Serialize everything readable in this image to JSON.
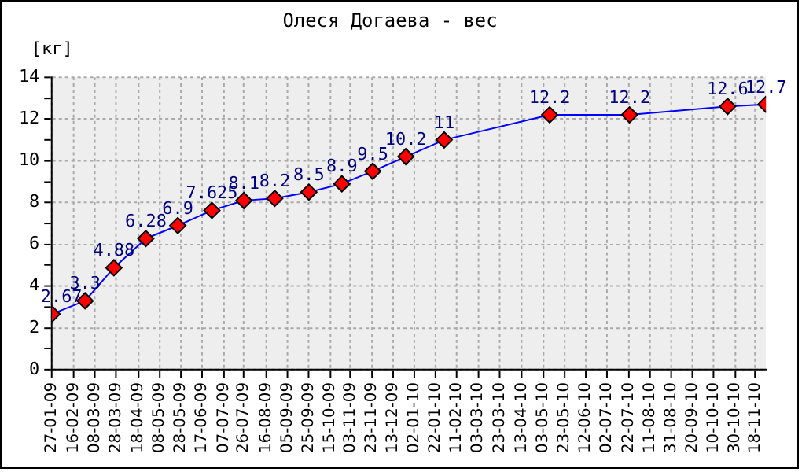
{
  "chart_data": {
    "type": "line",
    "title": "Олеся Догаева - вес",
    "ylabel": "[кг]",
    "x": [
      "2009-01-27",
      "2009-02-27",
      "2009-03-26",
      "2009-04-25",
      "2009-05-25",
      "2009-06-26",
      "2009-07-26",
      "2009-08-24",
      "2009-09-25",
      "2009-10-26",
      "2009-11-24",
      "2009-12-25",
      "2010-01-30",
      "2010-05-09",
      "2010-07-23",
      "2010-10-23",
      "2010-11-28"
    ],
    "series": [
      {
        "color": "#0000ff",
        "values": [
          2.67,
          3.3,
          4.88,
          6.28,
          6.9,
          7.625,
          8.1,
          8.2,
          8.5,
          8.9,
          9.5,
          10.2,
          11,
          12.2,
          12.2,
          12.6,
          12.7
        ]
      }
    ],
    "marker": "diamond",
    "data_labels": true,
    "grid": true,
    "xlim": [
      "2009-01-27",
      "2010-11-28"
    ],
    "xticks": [
      {
        "value": "2009-01-27",
        "label": "27-01-09"
      },
      {
        "value": "2009-02-16",
        "label": "16-02-09"
      },
      {
        "value": "2009-03-08",
        "label": "08-03-09"
      },
      {
        "value": "2009-03-28",
        "label": "28-03-09"
      },
      {
        "value": "2009-04-18",
        "label": "18-04-09"
      },
      {
        "value": "2009-05-08",
        "label": "08-05-09"
      },
      {
        "value": "2009-05-28",
        "label": "28-05-09"
      },
      {
        "value": "2009-06-17",
        "label": "17-06-09"
      },
      {
        "value": "2009-07-07",
        "label": "07-07-09"
      },
      {
        "value": "2009-07-26",
        "label": "26-07-09"
      },
      {
        "value": "2009-08-16",
        "label": "16-08-09"
      },
      {
        "value": "2009-09-05",
        "label": "05-09-09"
      },
      {
        "value": "2009-09-25",
        "label": "25-09-09"
      },
      {
        "value": "2009-10-15",
        "label": "15-10-09"
      },
      {
        "value": "2009-11-03",
        "label": "03-11-09"
      },
      {
        "value": "2009-11-23",
        "label": "23-11-09"
      },
      {
        "value": "2009-12-13",
        "label": "13-12-09"
      },
      {
        "value": "2010-01-02",
        "label": "02-01-10"
      },
      {
        "value": "2010-01-22",
        "label": "22-01-10"
      },
      {
        "value": "2010-02-11",
        "label": "11-02-10"
      },
      {
        "value": "2010-03-03",
        "label": "03-03-10"
      },
      {
        "value": "2010-03-23",
        "label": "23-03-10"
      },
      {
        "value": "2010-04-13",
        "label": "13-04-10"
      },
      {
        "value": "2010-05-03",
        "label": "03-05-10"
      },
      {
        "value": "2010-05-23",
        "label": "23-05-10"
      },
      {
        "value": "2010-06-12",
        "label": "12-06-10"
      },
      {
        "value": "2010-07-02",
        "label": "02-07-10"
      },
      {
        "value": "2010-07-22",
        "label": "22-07-10"
      },
      {
        "value": "2010-08-11",
        "label": "11-08-10"
      },
      {
        "value": "2010-08-31",
        "label": "31-08-10"
      },
      {
        "value": "2010-09-20",
        "label": "20-09-10"
      },
      {
        "value": "2010-10-10",
        "label": "10-10-10"
      },
      {
        "value": "2010-10-30",
        "label": "30-10-10"
      },
      {
        "value": "2010-11-18",
        "label": "18-11-10"
      }
    ],
    "ylim": [
      0,
      14
    ],
    "yticks": [
      0,
      {
        "value": 1,
        "label": null
      },
      2,
      {
        "value": 3,
        "label": null
      },
      4,
      {
        "value": 5,
        "label": null
      },
      6,
      {
        "value": 7,
        "label": null
      },
      8,
      {
        "value": 9,
        "label": null
      },
      10,
      {
        "value": 11,
        "label": null
      },
      12,
      {
        "value": 13,
        "label": null
      },
      14
    ]
  }
}
